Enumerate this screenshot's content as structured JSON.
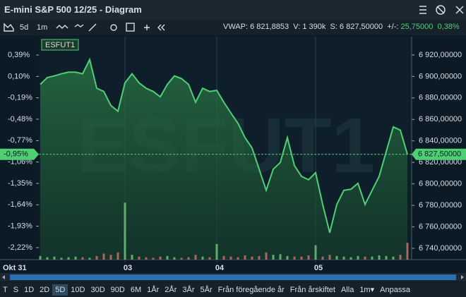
{
  "header": {
    "title": "E-mini S&P 500 12/25 - Diagram"
  },
  "toolbar": {
    "period": "5d",
    "interval": "1m",
    "vwap": "VWAP: 6 821,8853",
    "volume": "V: 1 390k",
    "last": "S: 6 827,50000",
    "change_prefix": "+/-:",
    "change": "25,75000",
    "change_pct": "0,38%"
  },
  "chart_data": {
    "type": "line",
    "legend": "ESFUT1",
    "watermark": "ESFUT1",
    "start_label": "Okt 31",
    "categories": [
      null,
      null,
      null,
      null,
      null,
      null,
      null,
      null,
      null,
      null,
      null,
      null,
      "03",
      null,
      null,
      null,
      null,
      null,
      null,
      null,
      null,
      null,
      null,
      null,
      null,
      "04",
      null,
      null,
      null,
      null,
      null,
      null,
      null,
      null,
      null,
      null,
      null,
      null,
      null,
      "05",
      null,
      null,
      null,
      null,
      null,
      null,
      null,
      null,
      null,
      null,
      null,
      null,
      null
    ],
    "series": [
      {
        "name": "ESFUT1",
        "color": "#4fcf74",
        "values": [
          6892.6,
          6899,
          6900.5,
          6902.5,
          6904,
          6904,
          6902.5,
          6915.7,
          6889,
          6886,
          6873,
          6867.6,
          6894,
          6902.5,
          6894,
          6889,
          6886,
          6881,
          6892.6,
          6900.5,
          6898,
          6892.6,
          6876,
          6889,
          6886,
          6887,
          6876,
          6866,
          6856.4,
          6843,
          6833.4,
          6813.7,
          6794,
          6813.7,
          6820,
          6843,
          6817,
          6807,
          6803.8,
          6810.4,
          6780.8,
          6754.5,
          6780.8,
          6794,
          6795,
          6800.5,
          6780.8,
          6794,
          6807,
          6830,
          6853,
          6850,
          6827.5
        ]
      }
    ],
    "last_label": "6 827,50000",
    "last_change_label": "-0,95%",
    "volume": [
      6,
      4,
      5,
      3,
      4,
      5,
      4,
      3,
      6,
      10,
      8,
      12,
      95,
      8,
      5,
      4,
      3,
      5,
      6,
      4,
      3,
      4,
      8,
      5,
      4,
      26,
      6,
      5,
      4,
      7,
      5,
      6,
      12,
      8,
      9,
      6,
      5,
      5,
      7,
      24,
      5,
      8,
      6,
      5,
      4,
      6,
      5,
      5,
      7,
      6,
      5,
      8,
      28
    ],
    "ylim": [
      6729.5,
      6937
    ],
    "yticks": [
      {
        "value": 6740,
        "label": "6 740,00000"
      },
      {
        "value": 6760,
        "label": "6 760,00000"
      },
      {
        "value": 6780,
        "label": "6 780,00000"
      },
      {
        "value": 6800,
        "label": "6 800,00000"
      },
      {
        "value": 6820,
        "label": "6 820,00000"
      },
      {
        "value": 6840,
        "label": "6 840,00000"
      },
      {
        "value": 6860,
        "label": "6 860,00000"
      },
      {
        "value": 6880,
        "label": "6 880,00000"
      },
      {
        "value": 6900,
        "label": "6 900,00000"
      },
      {
        "value": 6920,
        "label": "6 920,00000"
      }
    ],
    "y2lim": [
      -2.383,
      0.639
    ],
    "y2ticks": [
      {
        "value": -2.22,
        "label": "-2,22%"
      },
      {
        "value": -1.93,
        "label": "-1,93%"
      },
      {
        "value": -1.64,
        "label": "-1,64%"
      },
      {
        "value": -1.35,
        "label": "-1,35%"
      },
      {
        "value": -1.06,
        "label": "-1,06%"
      },
      {
        "value": -0.77,
        "label": "-0,77%"
      },
      {
        "value": -0.48,
        "label": "-0,48%"
      },
      {
        "value": -0.19,
        "label": "-0,19%"
      },
      {
        "value": 0.1,
        "label": "0,10%"
      },
      {
        "value": 0.39,
        "label": "0,39%"
      }
    ]
  },
  "range_buttons": [
    "T",
    "S",
    "1D",
    "2D",
    "5D",
    "10D",
    "30D",
    "90D",
    "6M",
    "1År",
    "2År",
    "3År",
    "5År",
    "Från föregående år",
    "Från årskiftet",
    "Alla",
    "1m▾",
    "Anpassa"
  ]
}
